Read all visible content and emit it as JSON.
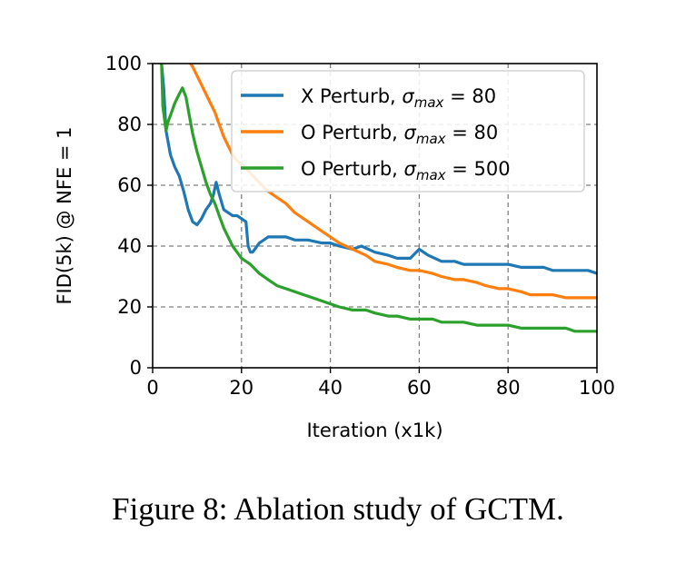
{
  "figure": {
    "caption": "Figure 8: Ablation study of GCTM."
  },
  "chart_data": {
    "type": "line",
    "xlabel": "Iteration (x1k)",
    "ylabel": "FID(5k) @ NFE = 1",
    "xlim": [
      0,
      100
    ],
    "ylim": [
      0,
      100
    ],
    "xticks": [
      "0",
      "20",
      "40",
      "60",
      "80",
      "100"
    ],
    "yticks": [
      "0",
      "20",
      "40",
      "60",
      "80",
      "100"
    ],
    "grid": "dashed, at major ticks",
    "legend_position": "top-right",
    "series": [
      {
        "label_prefix": "X Perturb, ",
        "label_sigma": "σ",
        "label_sub": "max",
        "label_suffix": " = 80",
        "color": "#1f77b4",
        "x": [
          2.0,
          2.5,
          3,
          4,
          5,
          6,
          7,
          8,
          9,
          10,
          11,
          12,
          13,
          13.7,
          14.3,
          15,
          16,
          17,
          18,
          19,
          20,
          21,
          21.5,
          22,
          22.5,
          23,
          24,
          25,
          26,
          28,
          30,
          32,
          35,
          38,
          40,
          42,
          45,
          47,
          50,
          53,
          55,
          58,
          60,
          62,
          65,
          68,
          70,
          73,
          75,
          78,
          80,
          83,
          85,
          88,
          90,
          93,
          95,
          98,
          100
        ],
        "y": [
          100,
          92,
          78,
          70,
          66,
          63,
          58,
          52,
          48,
          47,
          49,
          52,
          54,
          57,
          61,
          57,
          52,
          51,
          50,
          50,
          49,
          48,
          40,
          38,
          38,
          39,
          41,
          42,
          43,
          43,
          43,
          42,
          42,
          41,
          41,
          40,
          39,
          40,
          38,
          37,
          36,
          36,
          39,
          37,
          35,
          35,
          34,
          34,
          34,
          34,
          34,
          33,
          33,
          33,
          32,
          32,
          32,
          32,
          31
        ]
      },
      {
        "label_prefix": "O Perturb, ",
        "label_sigma": "σ",
        "label_sub": "max",
        "label_suffix": " = 80",
        "color": "#ff7f0e",
        "x": [
          8.5,
          9,
          10,
          11,
          12,
          13,
          14,
          15,
          16,
          17,
          18,
          19,
          20,
          22,
          24,
          26,
          28,
          30,
          32,
          35,
          38,
          40,
          42,
          45,
          48,
          50,
          53,
          55,
          58,
          60,
          63,
          65,
          68,
          70,
          73,
          75,
          78,
          80,
          83,
          85,
          88,
          90,
          93,
          95,
          98,
          100
        ],
        "y": [
          100,
          99,
          96,
          93,
          90,
          87,
          84,
          80,
          76,
          73,
          70,
          68,
          67,
          64,
          61,
          58,
          56,
          54,
          51,
          48,
          45,
          43,
          41,
          39,
          37,
          35,
          34,
          33,
          32,
          32,
          31,
          30,
          29,
          29,
          28,
          27,
          26,
          26,
          25,
          24,
          24,
          24,
          23,
          23,
          23,
          23
        ]
      },
      {
        "label_prefix": "O Perturb, ",
        "label_sigma": "σ",
        "label_sub": "max",
        "label_suffix": " = 500",
        "color": "#2ca02c",
        "x": [
          2.0,
          2.3,
          3,
          3.5,
          4,
          5,
          6,
          6.7,
          7.5,
          8,
          9,
          10,
          11,
          12,
          13,
          14,
          15,
          16,
          17,
          18,
          19,
          20,
          22,
          24,
          26,
          28,
          30,
          32,
          34,
          36,
          38,
          40,
          42,
          45,
          48,
          50,
          53,
          55,
          58,
          60,
          63,
          65,
          68,
          70,
          73,
          75,
          78,
          80,
          83,
          85,
          88,
          90,
          93,
          95,
          98,
          100
        ],
        "y": [
          100,
          86,
          78,
          81,
          83,
          87,
          90,
          92,
          89,
          85,
          77,
          71,
          66,
          61,
          57,
          54,
          50,
          46,
          43,
          40,
          38,
          36,
          34,
          31,
          29,
          27,
          26,
          25,
          24,
          23,
          22,
          21,
          20,
          19,
          19,
          18,
          17,
          17,
          16,
          16,
          16,
          15,
          15,
          15,
          14,
          14,
          14,
          14,
          13,
          13,
          13,
          13,
          13,
          12,
          12,
          12
        ]
      }
    ]
  }
}
